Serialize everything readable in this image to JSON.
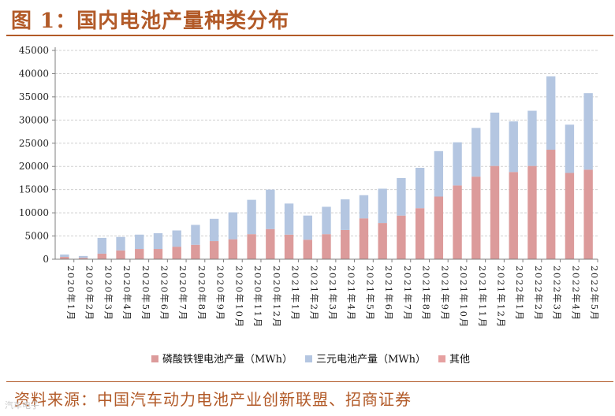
{
  "title": "图 1：国内电池产量种类分布",
  "source": "资料来源：中国汽车动力电池产业创新联盟、招商证券",
  "watermark": "汽车电子",
  "colors": {
    "lfp": "#dc9b9b",
    "ternary": "#b4c6e1",
    "other": "#e6a0a0",
    "axis": "#7f7f7f",
    "grid": "#d0d0d0",
    "accent": "#b25a28"
  },
  "chart_data": {
    "type": "bar",
    "stacked": true,
    "categories": [
      "2020年1月",
      "2020年2月",
      "2020年3月",
      "2020年4月",
      "2020年5月",
      "2020年6月",
      "2020年7月",
      "2020年8月",
      "2020年9月",
      "2020年10月",
      "2020年11月",
      "2020年12月",
      "2021年1月",
      "2021年2月",
      "2021年3月",
      "2021年4月",
      "2021年5月",
      "2021年6月",
      "2021年7月",
      "2021年8月",
      "2021年9月",
      "2021年10月",
      "2021年11月",
      "2021年12月",
      "2022年1月",
      "2022年2月",
      "2022年3月",
      "2022年4月",
      "2022年5月"
    ],
    "series": [
      {
        "name": "磷酸铁锂电池产量（MWh）",
        "color": "#dc9b9b",
        "values": [
          500,
          300,
          1200,
          1900,
          2200,
          2200,
          2700,
          3100,
          3900,
          4300,
          5400,
          6500,
          5300,
          4200,
          5400,
          6300,
          8800,
          7800,
          9400,
          11000,
          13500,
          15900,
          17800,
          20100,
          18800,
          20100,
          23600,
          18600,
          19300
        ]
      },
      {
        "name": "三元电池产量（MWh）",
        "color": "#b4c6e1",
        "values": [
          500,
          400,
          3400,
          2900,
          3100,
          3400,
          3500,
          4300,
          4800,
          5800,
          7400,
          8500,
          6700,
          5200,
          5900,
          6600,
          5000,
          7400,
          8100,
          8700,
          9800,
          9300,
          10500,
          11500,
          10900,
          11900,
          15800,
          10400,
          16500
        ]
      },
      {
        "name": "其他",
        "color": "#e6a0a0",
        "values": [
          0,
          0,
          0,
          0,
          0,
          0,
          0,
          0,
          0,
          0,
          0,
          0,
          0,
          0,
          0,
          0,
          0,
          0,
          0,
          0,
          0,
          0,
          0,
          0,
          0,
          0,
          0,
          0,
          0
        ]
      }
    ],
    "title": "国内电池产量种类分布",
    "xlabel": "",
    "ylabel": "",
    "ylim": [
      0,
      45000
    ],
    "yticks": [
      0,
      5000,
      10000,
      15000,
      20000,
      25000,
      30000,
      35000,
      40000,
      45000
    ],
    "ytick_labels": [
      "0",
      "5000",
      "10000",
      "15000",
      "20000",
      "25000",
      "30000",
      "35000",
      "40000",
      "45000"
    ],
    "grid": true,
    "legend_position": "bottom"
  }
}
